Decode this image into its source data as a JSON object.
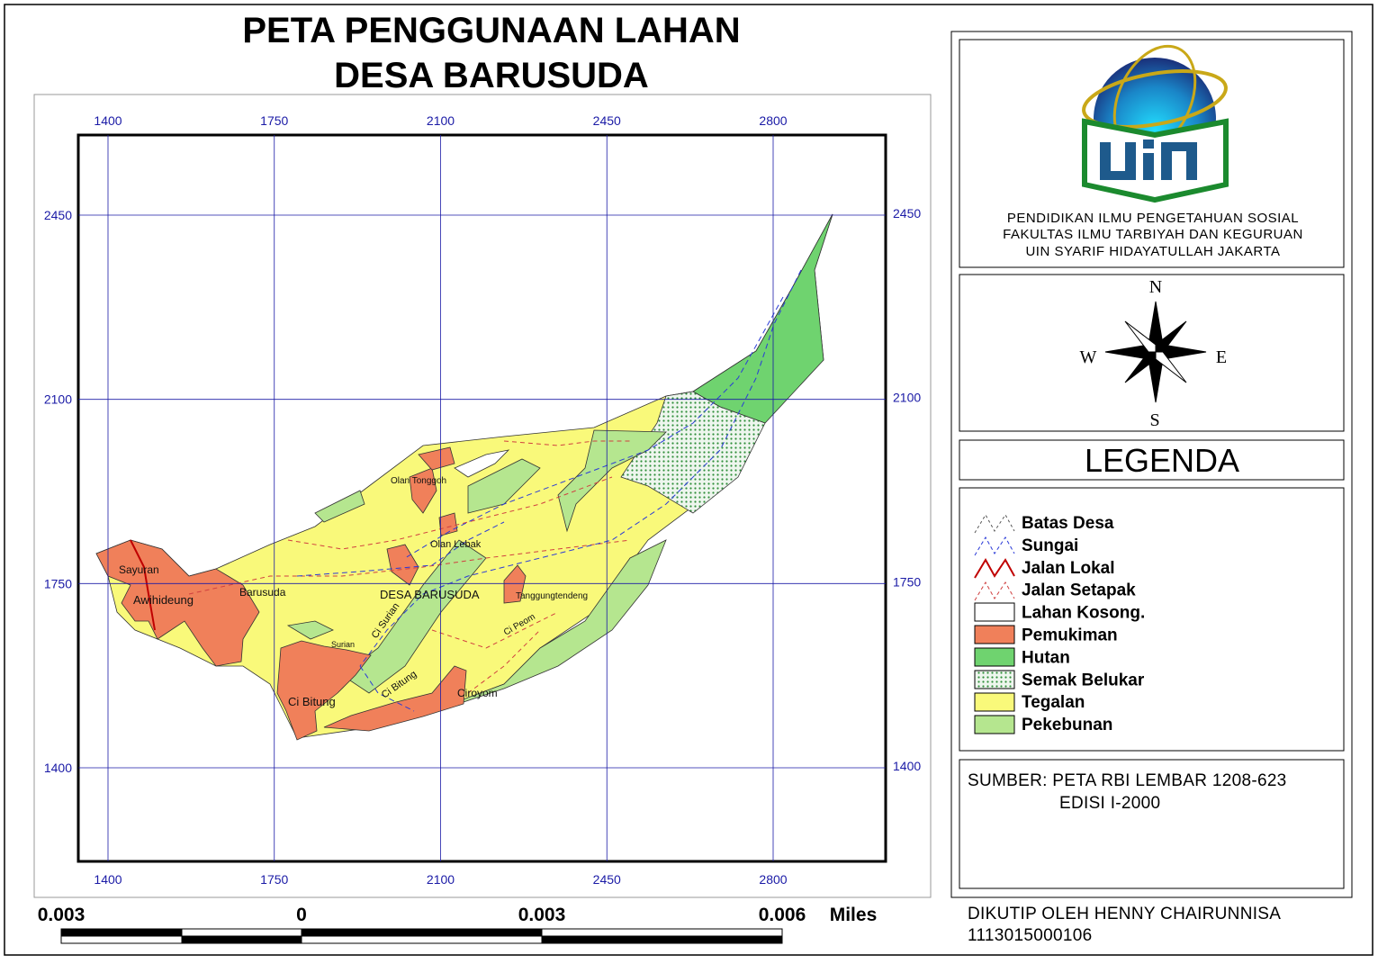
{
  "title": [
    "PETA PENGGUNAAN LAHAN",
    "DESA BARUSUDA"
  ],
  "grid": {
    "xticks": [
      1400,
      1750,
      2100,
      2450,
      2800
    ],
    "yticks": [
      2450,
      2100,
      1750,
      1400
    ]
  },
  "places": [
    "Sayuran",
    "Awihideung",
    "Barusuda",
    "DESA BARUSUDA",
    "Olan Tonggoh",
    "Olan Lebak",
    "Tanggungtendeng",
    "Ci Surian",
    "Surian",
    "Ci Bitung",
    "Ci Bitung",
    "Ciroyom",
    "Ci Peom"
  ],
  "institution": [
    "PENDIDIKAN ILMU PENGETAHUAN SOSIAL",
    "FAKULTAS ILMU TARBIYAH DAN KEGURUAN",
    "UIN SYARIF HIDAYATULLAH JAKARTA"
  ],
  "compass": {
    "n": "N",
    "w": "W",
    "e": "E",
    "s": "S"
  },
  "legend": {
    "title": "LEGENDA",
    "items": [
      "Batas Desa",
      "Sungai",
      "Jalan Lokal",
      "Jalan Setapak",
      "Lahan Kosong.",
      "Pemukiman",
      "Hutan",
      "Semak Belukar",
      "Tegalan",
      "Pekebunan"
    ]
  },
  "source": [
    "SUMBER: PETA RBI LEMBAR 1208-623",
    "EDISI I-2000"
  ],
  "scale": {
    "labels": [
      "0.003",
      "0",
      "0.003",
      "0.006"
    ],
    "unit": "Miles"
  },
  "credit": [
    "DIKUTIP OLEH HENNY CHAIRUNNISA",
    "1113015000106"
  ]
}
